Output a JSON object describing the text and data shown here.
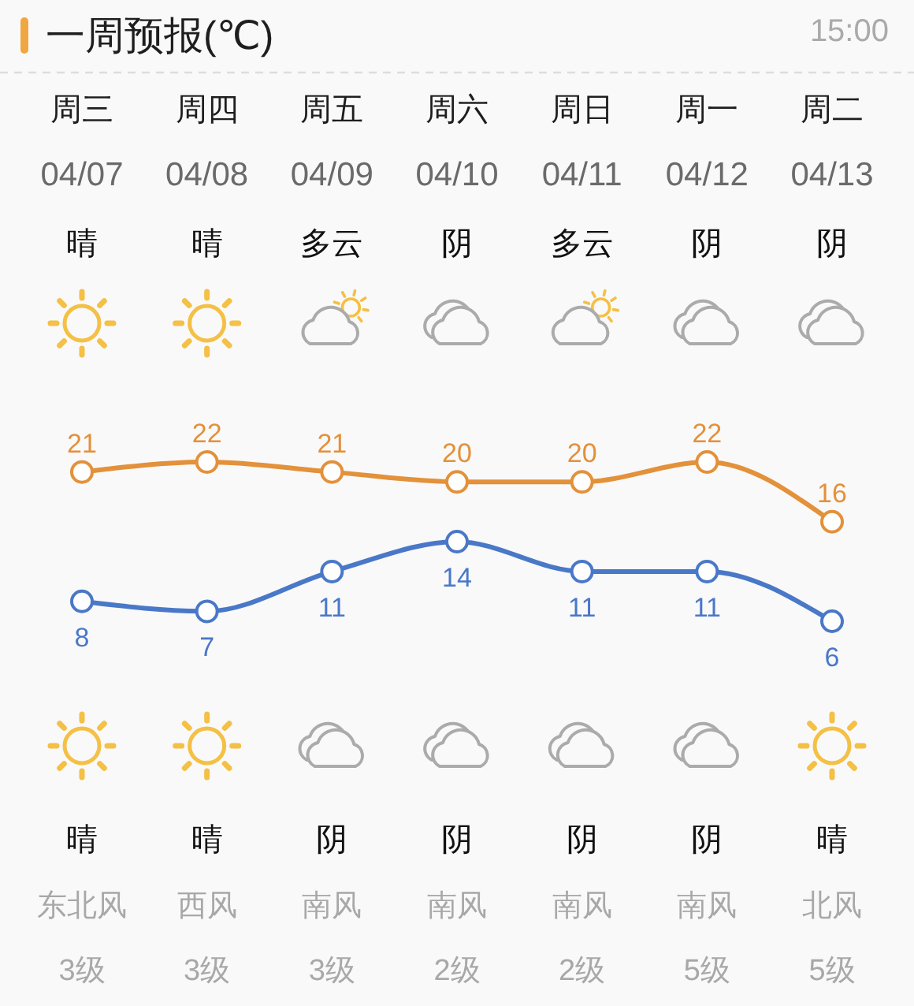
{
  "chart_data": {
    "type": "line",
    "title": "一周预报(℃)",
    "subtitle": "15:00",
    "categories": [
      "周三",
      "周四",
      "周五",
      "周六",
      "周日",
      "周一",
      "周二"
    ],
    "series": [
      {
        "color": "#e3913a",
        "values": [
          21,
          22,
          21,
          20,
          20,
          22,
          16
        ]
      },
      {
        "color": "#4a78c8",
        "values": [
          8,
          7,
          11,
          14,
          11,
          11,
          6
        ]
      }
    ],
    "data_labels": true,
    "marker": "circle",
    "line_style": "solid",
    "annotations": [
      "04/07",
      "04/08",
      "04/09",
      "04/10",
      "04/11",
      "04/12",
      "04/13",
      "晴",
      "晴",
      "多云",
      "阴",
      "多云",
      "阴",
      "阴",
      "晴",
      "晴",
      "阴",
      "阴",
      "阴",
      "阴",
      "晴",
      "东北风",
      "西风",
      "南风",
      "南风",
      "南风",
      "南风",
      "北风",
      "3级",
      "3级",
      "3级",
      "2级",
      "2级",
      "5级",
      "5级"
    ]
  }
}
